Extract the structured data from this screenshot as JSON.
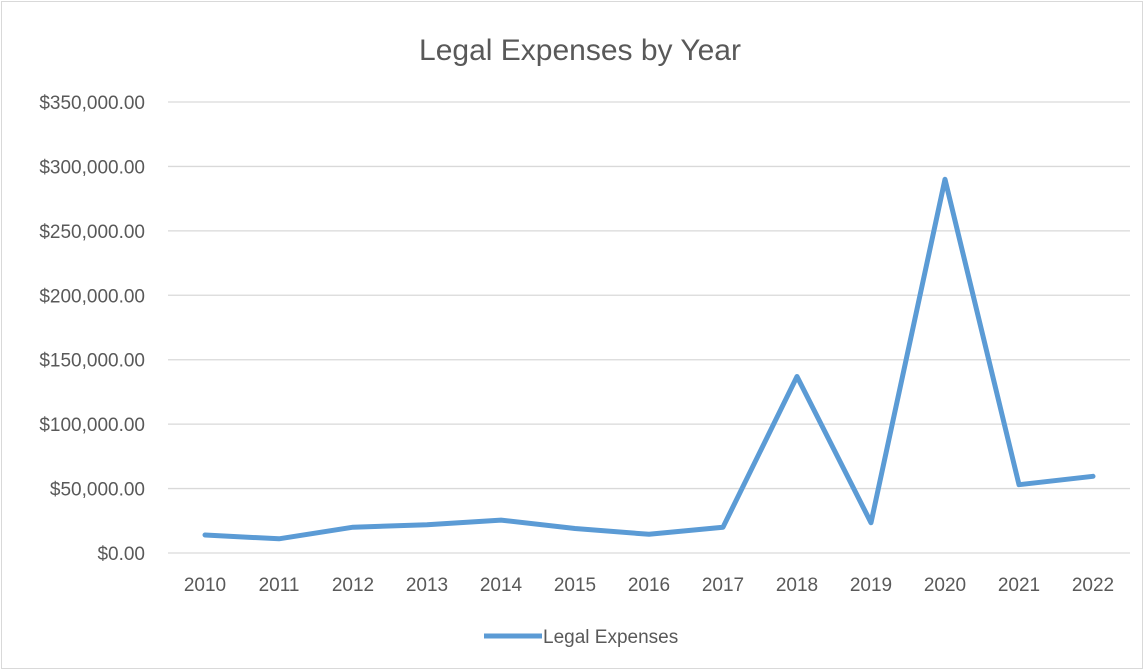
{
  "chart_data": {
    "type": "line",
    "title": "Legal Expenses by Year",
    "xlabel": "",
    "ylabel": "",
    "categories": [
      "2010",
      "2011",
      "2012",
      "2013",
      "2014",
      "2015",
      "2016",
      "2017",
      "2018",
      "2019",
      "2020",
      "2021",
      "2022"
    ],
    "series": [
      {
        "name": "Legal Expenses",
        "color": "#5b9bd5",
        "values": [
          14000,
          11000,
          20000,
          22000,
          25500,
          19000,
          14500,
          20000,
          137000,
          23500,
          290000,
          53000,
          59500
        ]
      }
    ],
    "ylim": [
      0,
      350000
    ],
    "y_ticks": [
      0,
      50000,
      100000,
      150000,
      200000,
      250000,
      300000,
      350000
    ],
    "y_tick_labels": [
      "$0.00",
      "$50,000.00",
      "$100,000.00",
      "$150,000.00",
      "$200,000.00",
      "$250,000.00",
      "$300,000.00",
      "$350,000.00"
    ],
    "grid": true,
    "legend_position": "bottom"
  }
}
